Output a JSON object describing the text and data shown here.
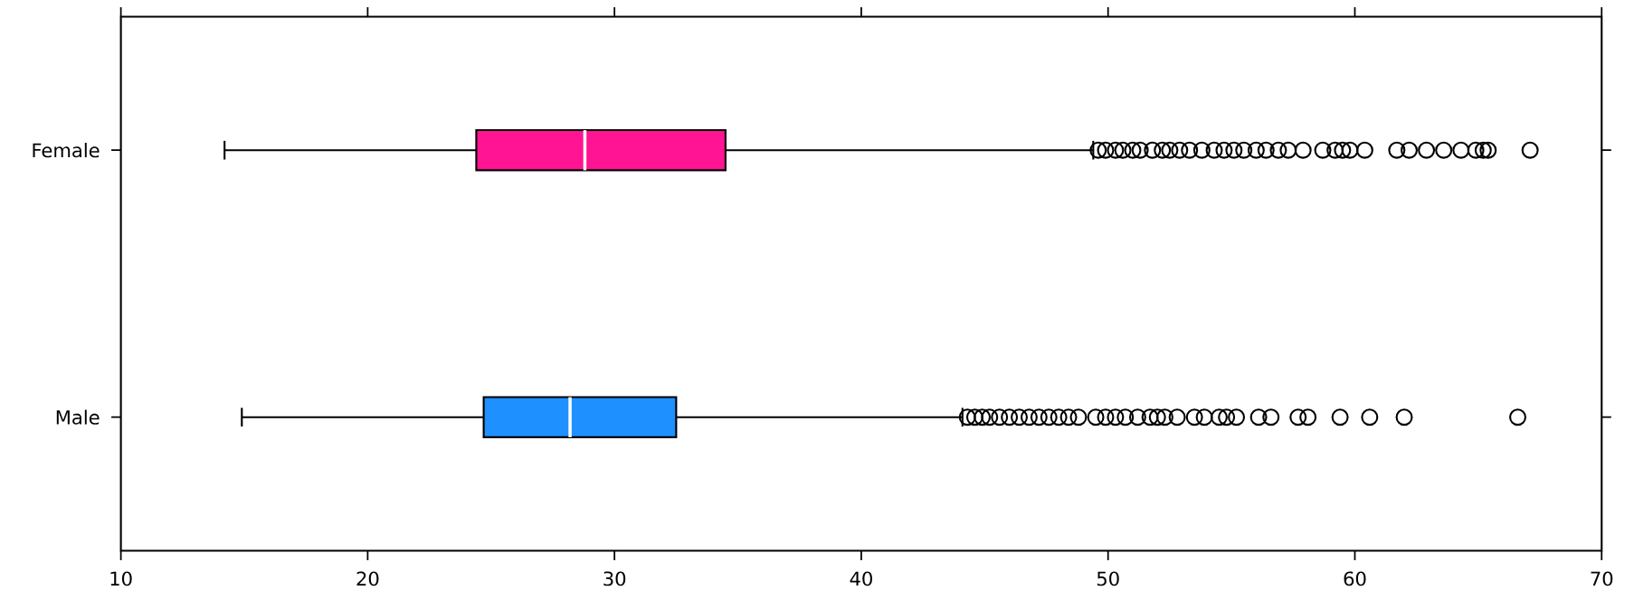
{
  "chart_data": {
    "type": "box",
    "orientation": "horizontal",
    "categories": [
      "Female",
      "Male"
    ],
    "colors": [
      "#ff1493",
      "#1e90ff"
    ],
    "boxes": [
      {
        "low": 14.2,
        "q1": 24.4,
        "median": 28.8,
        "q3": 34.5,
        "high": 49.4,
        "outliers": [
          49.6,
          49.9,
          50.3,
          50.6,
          51.0,
          51.3,
          51.8,
          52.2,
          52.5,
          52.9,
          53.3,
          53.8,
          54.3,
          54.7,
          55.1,
          55.5,
          56.0,
          56.4,
          56.9,
          57.3,
          57.9,
          58.7,
          59.2,
          59.5,
          59.8,
          60.4,
          61.7,
          62.2,
          62.9,
          63.6,
          64.3,
          64.9,
          65.2,
          65.4,
          67.1
        ]
      },
      {
        "low": 14.9,
        "q1": 24.7,
        "median": 28.2,
        "q3": 32.5,
        "high": 44.1,
        "outliers": [
          44.3,
          44.6,
          44.9,
          45.2,
          45.6,
          46.0,
          46.4,
          46.8,
          47.2,
          47.6,
          48.0,
          48.4,
          48.8,
          49.5,
          49.9,
          50.3,
          50.7,
          51.2,
          51.7,
          52.0,
          52.3,
          52.8,
          53.5,
          53.9,
          54.5,
          54.8,
          55.2,
          56.1,
          56.6,
          57.7,
          58.1,
          59.4,
          60.6,
          62.0,
          66.6
        ]
      }
    ],
    "marker": "circle",
    "xlim": [
      10,
      70
    ],
    "xticks": [
      10,
      20,
      30,
      40,
      50,
      60,
      70
    ]
  }
}
